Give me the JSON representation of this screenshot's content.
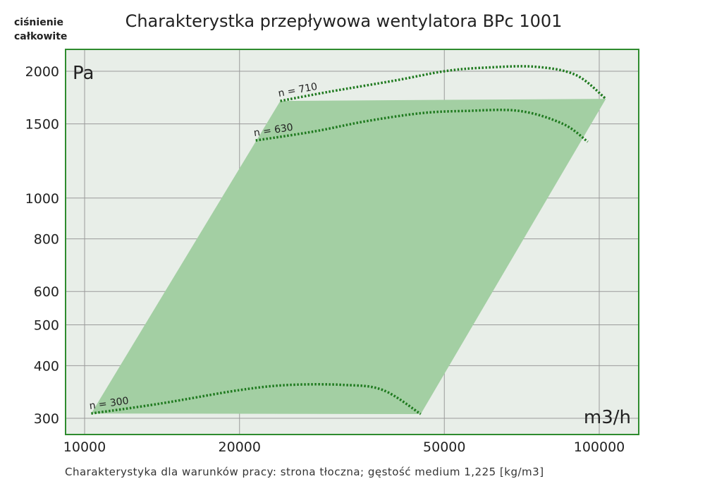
{
  "chart_data": {
    "type": "area",
    "title": "Charakterystka przepływowa wentylatora BPc 1001",
    "ylabel_lines": [
      "ciśnienie",
      "całkowite"
    ],
    "y_unit": "Pa",
    "x_unit": "m3/h",
    "footer": "Charakterystyka dla warunków pracy: strona tłoczna; gęstość medium 1,225 [kg/m3]",
    "x_scale": "log",
    "y_scale": "log",
    "xlim": [
      9000,
      115000
    ],
    "ylim": [
      280,
      2150
    ],
    "x_ticks": [
      10000,
      20000,
      50000,
      100000
    ],
    "y_ticks": [
      300,
      400,
      500,
      600,
      800,
      1000,
      1500,
      2000
    ],
    "grid": true,
    "colors": {
      "frame": "#2e8b2e",
      "fill": "#a3cfa3",
      "plot_bg": "#e8eee8",
      "curve": "#1f7a1f",
      "grid": "#9a9a9a"
    },
    "region": [
      [
        10300,
        308
      ],
      [
        24000,
        1700
      ],
      [
        24000,
        1700
      ],
      [
        103000,
        1720
      ],
      [
        45000,
        307
      ]
    ],
    "series": [
      {
        "name": "n = 710",
        "x": [
          24000,
          30000,
          40000,
          50000,
          60000,
          75000,
          90000,
          103000
        ],
        "y": [
          1700,
          1790,
          1900,
          2000,
          2040,
          2050,
          1960,
          1720
        ]
      },
      {
        "name": "n = 630",
        "x": [
          21500,
          28000,
          35000,
          45000,
          55000,
          70000,
          85000,
          95000
        ],
        "y": [
          1370,
          1440,
          1520,
          1590,
          1610,
          1610,
          1500,
          1360
        ]
      },
      {
        "name": "n = 300",
        "x": [
          10300,
          14000,
          20000,
          25000,
          32000,
          38000,
          45000
        ],
        "y": [
          308,
          325,
          350,
          360,
          360,
          350,
          307
        ]
      }
    ]
  }
}
